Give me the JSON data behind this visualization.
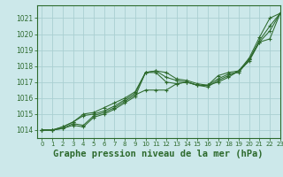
{
  "background_color": "#cce8ea",
  "grid_color": "#aacfd2",
  "line_color": "#2d6a2d",
  "title": "Graphe pression niveau de la mer (hPa)",
  "title_fontsize": 7.5,
  "xlim": [
    -0.5,
    23
  ],
  "ylim": [
    1013.5,
    1021.8
  ],
  "yticks": [
    1014,
    1015,
    1016,
    1017,
    1018,
    1019,
    1020,
    1021
  ],
  "xticks": [
    0,
    1,
    2,
    3,
    4,
    5,
    6,
    7,
    8,
    9,
    10,
    11,
    12,
    13,
    14,
    15,
    16,
    17,
    18,
    19,
    20,
    21,
    22,
    23
  ],
  "series": [
    {
      "x": [
        0,
        1,
        2,
        3,
        4,
        5,
        6,
        7,
        8,
        9,
        10,
        11,
        12,
        13,
        14,
        15,
        16,
        17,
        18,
        19,
        20,
        21,
        22,
        23
      ],
      "y": [
        1014,
        1014,
        1014.1,
        1014.3,
        1014.2,
        1014.8,
        1015.0,
        1015.3,
        1015.7,
        1016.1,
        1017.6,
        1017.7,
        1017.6,
        1017.2,
        1017.1,
        1016.9,
        1016.8,
        1017.4,
        1017.6,
        1017.7,
        1018.5,
        1019.8,
        1021.0,
        1021.3
      ]
    },
    {
      "x": [
        0,
        1,
        2,
        3,
        4,
        5,
        6,
        7,
        8,
        9,
        10,
        11,
        12,
        13,
        14,
        15,
        16,
        17,
        18,
        19,
        20,
        21,
        22,
        23
      ],
      "y": [
        1014,
        1014,
        1014.2,
        1014.5,
        1014.9,
        1015.0,
        1015.2,
        1015.5,
        1015.9,
        1016.3,
        1017.6,
        1017.7,
        1017.3,
        1017.1,
        1017.0,
        1016.8,
        1016.7,
        1017.1,
        1017.4,
        1017.7,
        1018.4,
        1019.6,
        1020.5,
        1021.3
      ]
    },
    {
      "x": [
        0,
        1,
        2,
        3,
        4,
        5,
        6,
        7,
        8,
        9,
        10,
        11,
        12,
        13,
        14,
        15,
        16,
        17,
        18,
        19,
        20,
        21,
        22,
        23
      ],
      "y": [
        1014,
        1014,
        1014.2,
        1014.5,
        1015.0,
        1015.1,
        1015.4,
        1015.7,
        1016.0,
        1016.4,
        1017.6,
        1017.6,
        1017.0,
        1016.9,
        1017.0,
        1016.8,
        1016.8,
        1017.2,
        1017.5,
        1017.6,
        1018.4,
        1019.5,
        1019.7,
        1021.3
      ]
    },
    {
      "x": [
        0,
        1,
        2,
        3,
        4,
        5,
        6,
        7,
        8,
        9,
        10,
        11,
        12,
        13,
        14,
        15,
        16,
        17,
        18,
        19,
        20,
        21,
        22,
        23
      ],
      "y": [
        1014,
        1014,
        1014.1,
        1014.4,
        1014.3,
        1014.9,
        1015.1,
        1015.4,
        1015.8,
        1016.2,
        1016.5,
        1016.5,
        1016.5,
        1016.9,
        1017.0,
        1016.8,
        1016.8,
        1017.0,
        1017.3,
        1017.7,
        1018.3,
        1019.5,
        1020.2,
        1021.3
      ]
    }
  ]
}
